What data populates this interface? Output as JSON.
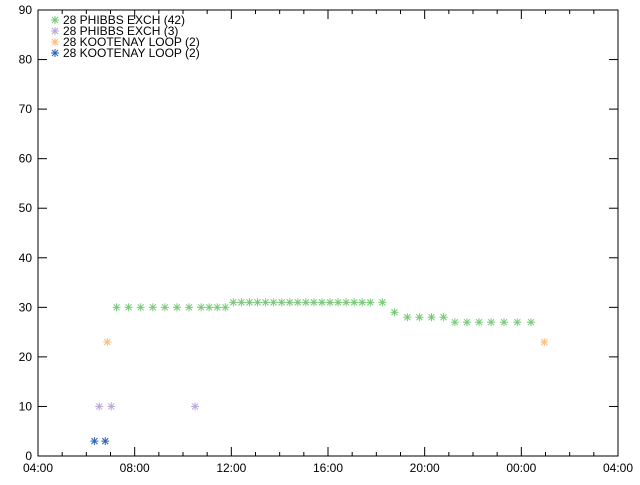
{
  "chart_data": {
    "type": "scatter",
    "title": "",
    "xlabel": "",
    "ylabel": "",
    "xlim": [
      "04:00",
      "04:00 (+1 day)"
    ],
    "ylim": [
      0,
      90
    ],
    "x_tick_labels": [
      "04:00",
      "08:00",
      "12:00",
      "16:00",
      "20:00",
      "00:00",
      "04:00"
    ],
    "y_tick_labels": [
      "0",
      "10",
      "20",
      "30",
      "40",
      "50",
      "60",
      "70",
      "80",
      "90"
    ],
    "grid": false,
    "legend_position": "top-left",
    "marker": "asterisk",
    "series": [
      {
        "name": "28 PHIBBS EXCH (42)",
        "color": "#77c977",
        "points": [
          [
            "07:15",
            30
          ],
          [
            "07:45",
            30
          ],
          [
            "08:15",
            30
          ],
          [
            "08:45",
            30
          ],
          [
            "09:15",
            30
          ],
          [
            "09:45",
            30
          ],
          [
            "10:15",
            30
          ],
          [
            "10:45",
            30
          ],
          [
            "11:05",
            30
          ],
          [
            "11:25",
            30
          ],
          [
            "11:45",
            30
          ],
          [
            "12:05",
            31
          ],
          [
            "12:25",
            31
          ],
          [
            "12:45",
            31
          ],
          [
            "13:05",
            31
          ],
          [
            "13:25",
            31
          ],
          [
            "13:45",
            31
          ],
          [
            "14:05",
            31
          ],
          [
            "14:25",
            31
          ],
          [
            "14:45",
            31
          ],
          [
            "15:05",
            31
          ],
          [
            "15:25",
            31
          ],
          [
            "15:45",
            31
          ],
          [
            "16:05",
            31
          ],
          [
            "16:25",
            31
          ],
          [
            "16:45",
            31
          ],
          [
            "17:05",
            31
          ],
          [
            "17:25",
            31
          ],
          [
            "17:45",
            31
          ],
          [
            "18:15",
            31
          ],
          [
            "18:45",
            29
          ],
          [
            "19:17",
            28
          ],
          [
            "19:47",
            28
          ],
          [
            "20:17",
            28
          ],
          [
            "20:47",
            28
          ],
          [
            "21:15",
            27
          ],
          [
            "21:45",
            27
          ],
          [
            "22:15",
            27
          ],
          [
            "22:45",
            27
          ],
          [
            "23:17",
            27
          ],
          [
            "23:50",
            27
          ],
          [
            "00:24",
            27
          ]
        ]
      },
      {
        "name": "28 PHIBBS EXCH (3)",
        "color": "#b7a6dc",
        "points": [
          [
            "06:32",
            10
          ],
          [
            "07:02",
            10
          ],
          [
            "10:30",
            10
          ]
        ]
      },
      {
        "name": "28 KOOTENAY LOOP (2)",
        "color": "#ffbb7a",
        "points": [
          [
            "06:52",
            23
          ],
          [
            "00:57",
            23
          ]
        ]
      },
      {
        "name": "28 KOOTENAY LOOP (2)",
        "color": "#2a63b5",
        "points": [
          [
            "06:20",
            3
          ],
          [
            "06:47",
            3
          ]
        ]
      }
    ]
  }
}
